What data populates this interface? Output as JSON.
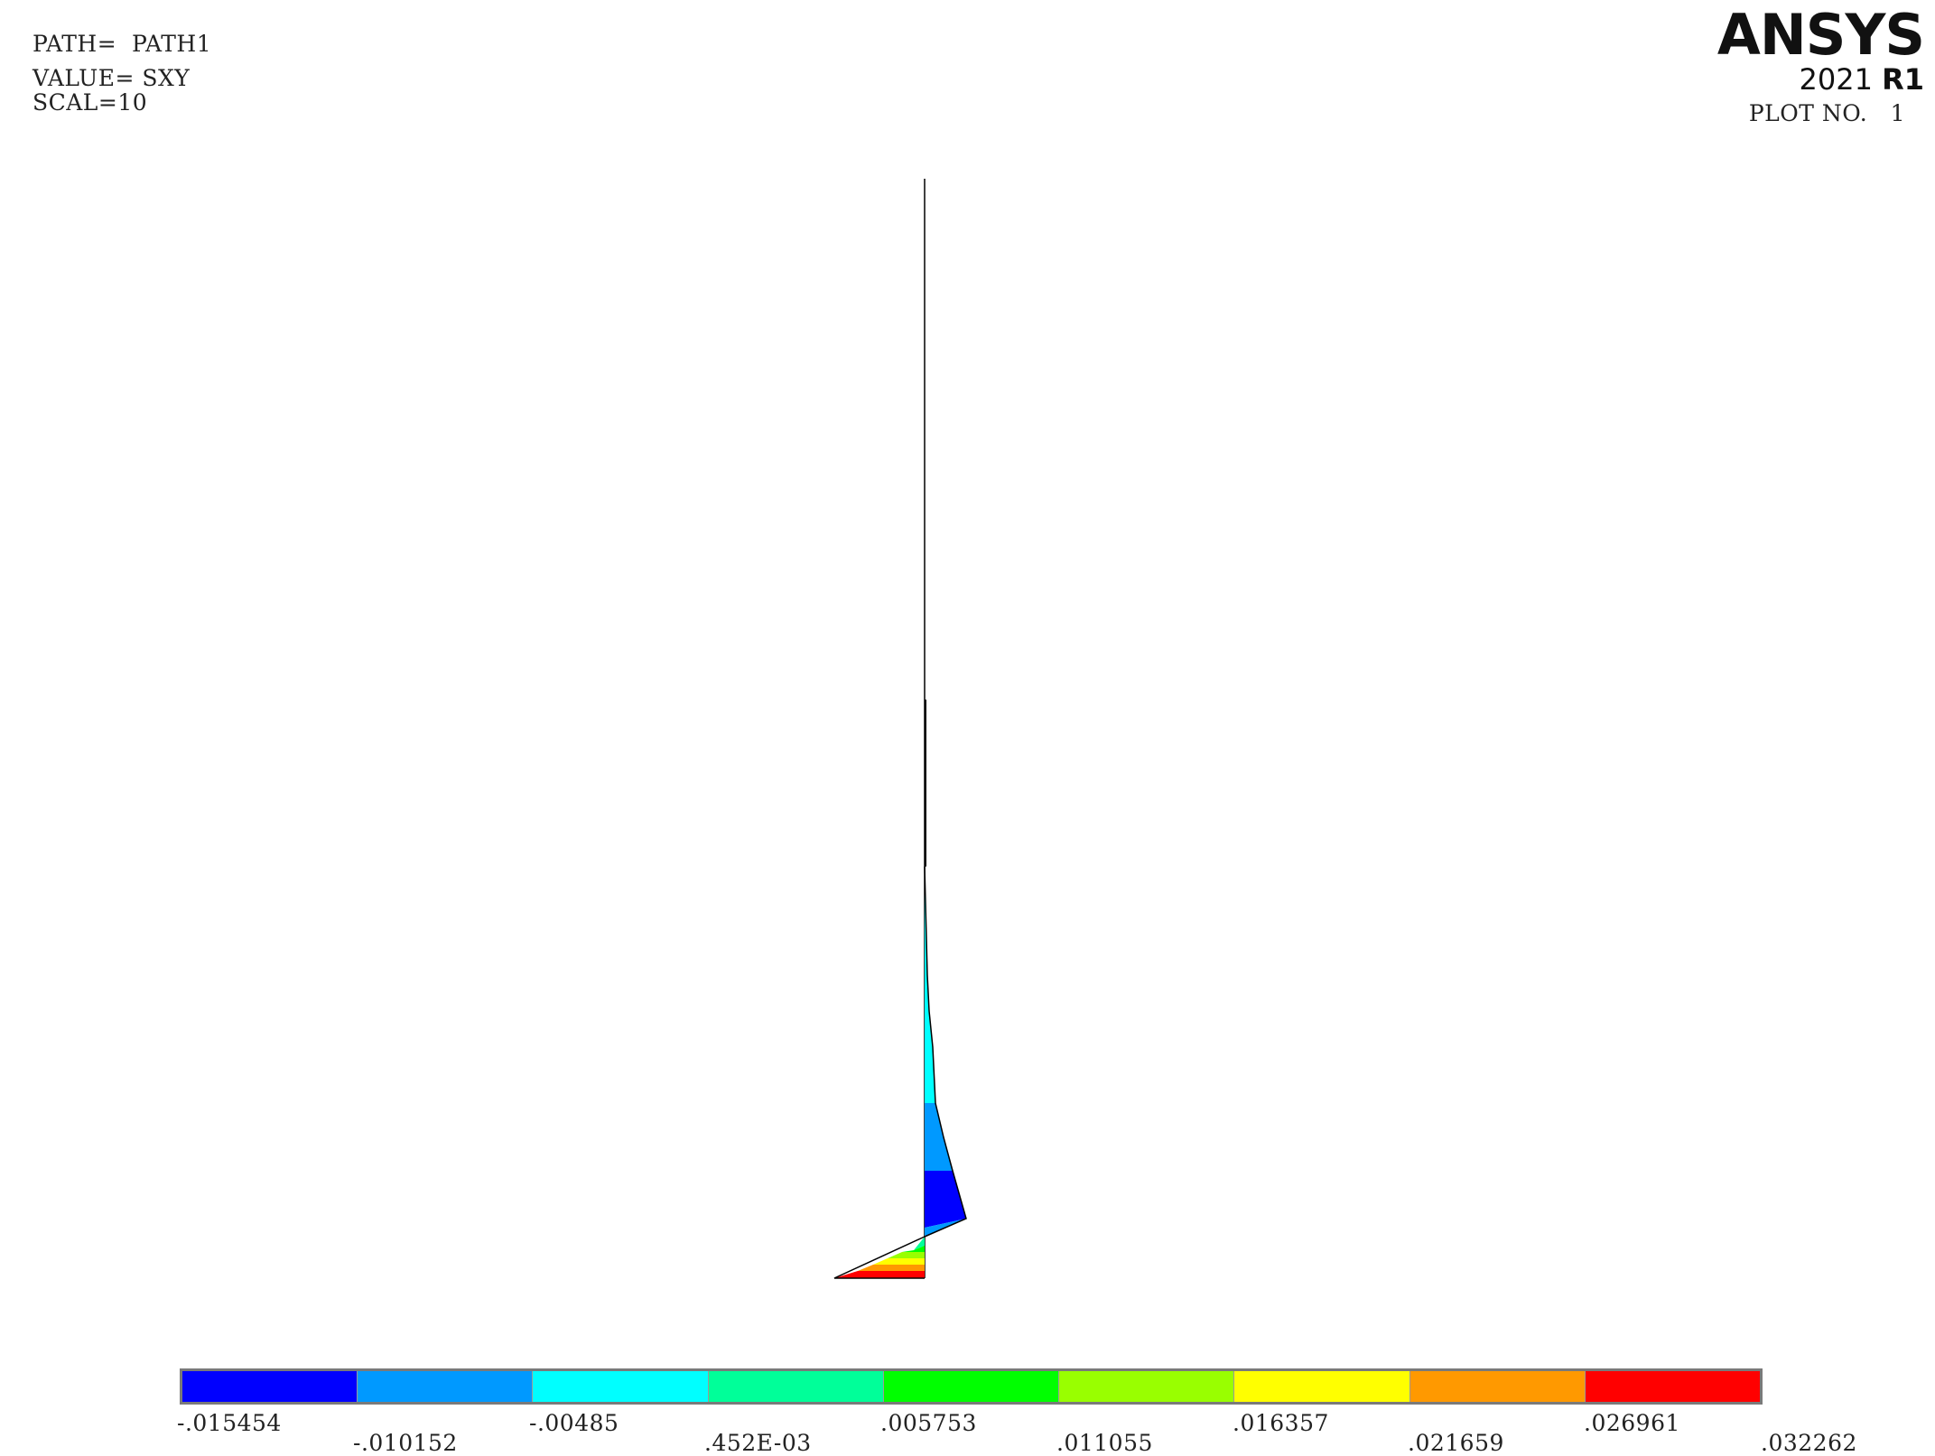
{
  "header": {
    "path": "PATH=  PATH1",
    "value": "VALUE= SXY",
    "scale": "SCAL=10",
    "plot_number": "PLOT NO.   1"
  },
  "logo": {
    "word": "ANSYS",
    "year": "2021",
    "release": "R1"
  },
  "legend": {
    "colors": [
      "#0000ff",
      "#0099ff",
      "#00ffff",
      "#00ff99",
      "#00ff00",
      "#99ff00",
      "#ffff00",
      "#ff9900",
      "#ff0000"
    ],
    "labels": [
      "-.015454",
      "-.010152",
      "-.00485",
      ".452E-03",
      ".005753",
      ".011055",
      ".016357",
      ".021659",
      ".026961",
      ".032262"
    ]
  }
}
